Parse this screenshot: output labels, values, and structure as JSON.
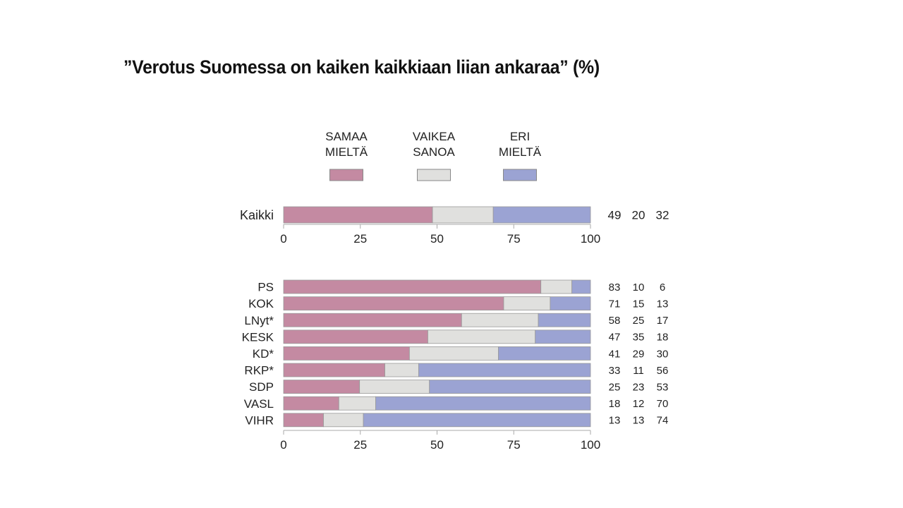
{
  "title": "”Verotus Suomessa on kaiken kaikkiaan liian ankaraa” (%)",
  "chart_data": {
    "type": "bar",
    "orientation": "horizontal-stacked",
    "title": "”Verotus Suomessa on kaiken kaikkiaan liian ankaraa” (%)",
    "legend": [
      {
        "label": [
          "SAMAA",
          "MIELTÄ"
        ],
        "color": "#c48aa2"
      },
      {
        "label": [
          "VAIKEA",
          "SANOA"
        ],
        "color": "#e0e0de"
      },
      {
        "label": [
          "ERI",
          "MIELTÄ"
        ],
        "color": "#9ba3d3"
      }
    ],
    "xlim": [
      0,
      100
    ],
    "xticks": [
      "0",
      "25",
      "50",
      "75",
      "100"
    ],
    "total": {
      "category": "Kaikki",
      "values": [
        49,
        20,
        32
      ]
    },
    "categories": [
      "PS",
      "KOK",
      "LNyt*",
      "KESK",
      "KD*",
      "RKP*",
      "SDP",
      "VASL",
      "VIHR"
    ],
    "series": [
      {
        "name": "SAMAA MIELTÄ",
        "values": [
          83,
          71,
          58,
          47,
          41,
          33,
          25,
          18,
          13
        ]
      },
      {
        "name": "VAIKEA SANOA",
        "values": [
          10,
          15,
          25,
          35,
          29,
          11,
          23,
          12,
          13
        ]
      },
      {
        "name": "ERI MIELTÄ",
        "values": [
          6,
          13,
          17,
          18,
          30,
          56,
          53,
          70,
          74
        ]
      }
    ]
  }
}
